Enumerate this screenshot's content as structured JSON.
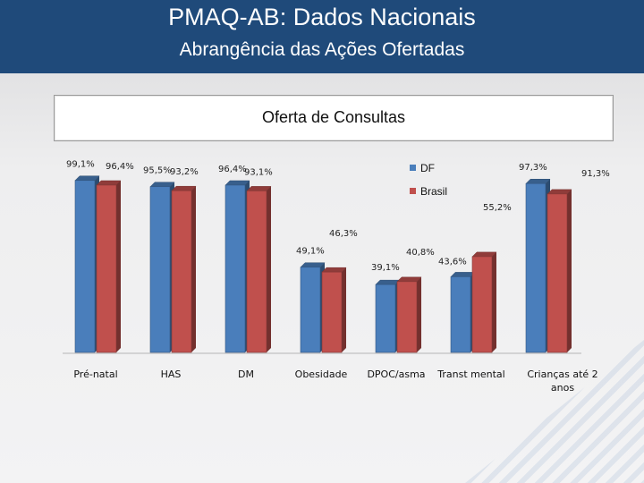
{
  "header": {
    "title": "PMAQ-AB: Dados Nacionais",
    "subtitle": "Abrangência das Ações Ofertadas"
  },
  "chart_data": {
    "type": "bar",
    "title": "Oferta de Consultas",
    "categories": [
      "Pré-natal",
      "HAS",
      "DM",
      "Obesidade",
      "DPOC/asma",
      "Transt mental",
      "Crianças até 2 anos"
    ],
    "series": [
      {
        "name": "DF",
        "color": "#4a7ebb",
        "values": [
          99.1,
          95.5,
          96.4,
          49.1,
          39.1,
          43.6,
          97.3
        ],
        "labels": [
          "99,1%",
          "95,5%",
          "96,4%",
          "49,1%",
          "39,1%",
          "43,6%",
          "97,3%"
        ]
      },
      {
        "name": "Brasil",
        "color": "#c0504d",
        "values": [
          96.4,
          93.2,
          93.1,
          46.3,
          40.8,
          55.2,
          91.3
        ],
        "labels": [
          "96,4%",
          "93,2%",
          "93,1%",
          "46,3%",
          "40,8%",
          "55,2%",
          "91,3%"
        ]
      }
    ],
    "ylim": [
      0,
      100
    ],
    "grid": false,
    "legend": "right"
  }
}
